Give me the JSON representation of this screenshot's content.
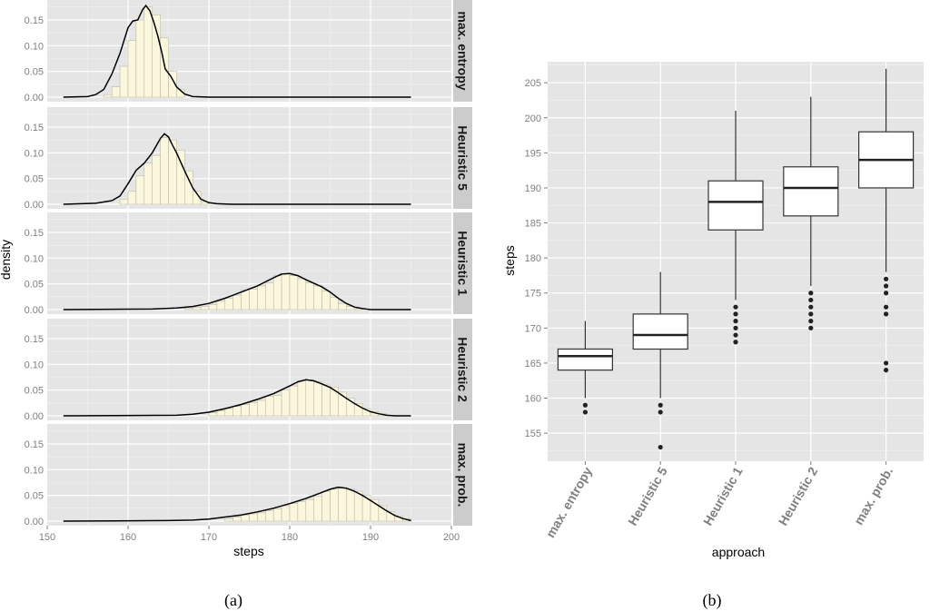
{
  "chart_data": [
    {
      "type": "histogram-density-facets",
      "xlabel": "steps",
      "ylabel": "density",
      "xlim": [
        150,
        200
      ],
      "xticks": [
        "150",
        "160",
        "170",
        "180",
        "190",
        "200"
      ],
      "ylim": [
        0,
        0.18
      ],
      "yticks": [
        "0.00",
        "0.05",
        "0.10",
        "0.15"
      ],
      "caption": "(a)",
      "colors": {
        "panel": "#e5e5e5",
        "strip": "#cccccc",
        "bar_fill": "#fbf7dc",
        "bar_stroke": "#b5b09a",
        "curve": "#000000"
      },
      "facets": [
        {
          "label": "max. entropy",
          "bins": [
            [
              157,
              0.005
            ],
            [
              158,
              0.02
            ],
            [
              159,
              0.06
            ],
            [
              160,
              0.11
            ],
            [
              161,
              0.15
            ],
            [
              162,
              0.175
            ],
            [
              163,
              0.16
            ],
            [
              164,
              0.115
            ],
            [
              165,
              0.05
            ],
            [
              166,
              0.015
            ]
          ],
          "density": [
            [
              152,
              0
            ],
            [
              155,
              0.001
            ],
            [
              156,
              0.005
            ],
            [
              157,
              0.015
            ],
            [
              158,
              0.045
            ],
            [
              159,
              0.085
            ],
            [
              160,
              0.135
            ],
            [
              160.6,
              0.148
            ],
            [
              161.2,
              0.15
            ],
            [
              161.8,
              0.17
            ],
            [
              162.2,
              0.178
            ],
            [
              162.7,
              0.168
            ],
            [
              163.2,
              0.145
            ],
            [
              163.7,
              0.118
            ],
            [
              164.2,
              0.085
            ],
            [
              164.6,
              0.055
            ],
            [
              165.3,
              0.04
            ],
            [
              166,
              0.02
            ],
            [
              167,
              0.006
            ],
            [
              168,
              0.001
            ],
            [
              170,
              0
            ],
            [
              195,
              0
            ]
          ]
        },
        {
          "label": "Heuristic 5",
          "bins": [
            [
              159,
              0.01
            ],
            [
              160,
              0.025
            ],
            [
              161,
              0.055
            ],
            [
              162,
              0.08
            ],
            [
              163,
              0.095
            ],
            [
              164,
              0.13
            ],
            [
              165,
              0.125
            ],
            [
              166,
              0.105
            ],
            [
              167,
              0.065
            ],
            [
              168,
              0.025
            ],
            [
              169,
              0.005
            ]
          ],
          "density": [
            [
              152,
              0
            ],
            [
              156,
              0.002
            ],
            [
              158,
              0.007
            ],
            [
              159,
              0.016
            ],
            [
              160,
              0.04
            ],
            [
              161,
              0.066
            ],
            [
              162,
              0.08
            ],
            [
              163,
              0.1
            ],
            [
              164,
              0.128
            ],
            [
              164.5,
              0.137
            ],
            [
              165,
              0.131
            ],
            [
              165.5,
              0.115
            ],
            [
              166,
              0.1
            ],
            [
              167,
              0.065
            ],
            [
              168,
              0.032
            ],
            [
              169,
              0.01
            ],
            [
              170,
              0.003
            ],
            [
              171,
              0.001
            ],
            [
              173,
              0
            ],
            [
              195,
              0
            ]
          ]
        },
        {
          "label": "Heuristic 1",
          "bins": [
            [
              167,
              0.002
            ],
            [
              168,
              0.004
            ],
            [
              169,
              0.006
            ],
            [
              170,
              0.01
            ],
            [
              171,
              0.016
            ],
            [
              172,
              0.022
            ],
            [
              173,
              0.028
            ],
            [
              174,
              0.038
            ],
            [
              175,
              0.04
            ],
            [
              176,
              0.046
            ],
            [
              177,
              0.052
            ],
            [
              178,
              0.066
            ],
            [
              179,
              0.07
            ],
            [
              180,
              0.066
            ],
            [
              181,
              0.06
            ],
            [
              182,
              0.052
            ],
            [
              183,
              0.046
            ],
            [
              184,
              0.036
            ],
            [
              185,
              0.024
            ],
            [
              186,
              0.012
            ],
            [
              187,
              0.006
            ],
            [
              188,
              0.002
            ]
          ],
          "density": [
            [
              152,
              0
            ],
            [
              163,
              0.001
            ],
            [
              166,
              0.003
            ],
            [
              168,
              0.006
            ],
            [
              170,
              0.012
            ],
            [
              172,
              0.022
            ],
            [
              174,
              0.034
            ],
            [
              176,
              0.046
            ],
            [
              178,
              0.062
            ],
            [
              179,
              0.069
            ],
            [
              180,
              0.07
            ],
            [
              181,
              0.066
            ],
            [
              182,
              0.058
            ],
            [
              184,
              0.044
            ],
            [
              185,
              0.034
            ],
            [
              186,
              0.022
            ],
            [
              187,
              0.012
            ],
            [
              188,
              0.005
            ],
            [
              189,
              0.002
            ],
            [
              190,
              0
            ],
            [
              195,
              0
            ]
          ]
        },
        {
          "label": "Heuristic 2",
          "bins": [
            [
              170,
              0.006
            ],
            [
              171,
              0.01
            ],
            [
              172,
              0.014
            ],
            [
              173,
              0.018
            ],
            [
              174,
              0.022
            ],
            [
              175,
              0.026
            ],
            [
              176,
              0.03
            ],
            [
              177,
              0.038
            ],
            [
              178,
              0.04
            ],
            [
              179,
              0.05
            ],
            [
              180,
              0.058
            ],
            [
              181,
              0.068
            ],
            [
              182,
              0.07
            ],
            [
              183,
              0.066
            ],
            [
              184,
              0.06
            ],
            [
              185,
              0.056
            ],
            [
              186,
              0.046
            ],
            [
              187,
              0.034
            ],
            [
              188,
              0.024
            ],
            [
              189,
              0.014
            ],
            [
              190,
              0.008
            ],
            [
              191,
              0.004
            ]
          ],
          "density": [
            [
              152,
              0
            ],
            [
              166,
              0.001
            ],
            [
              168,
              0.003
            ],
            [
              170,
              0.007
            ],
            [
              172,
              0.014
            ],
            [
              174,
              0.022
            ],
            [
              176,
              0.032
            ],
            [
              178,
              0.043
            ],
            [
              180,
              0.058
            ],
            [
              181,
              0.066
            ],
            [
              182,
              0.07
            ],
            [
              183,
              0.068
            ],
            [
              184,
              0.062
            ],
            [
              185,
              0.055
            ],
            [
              186,
              0.045
            ],
            [
              187,
              0.034
            ],
            [
              188,
              0.024
            ],
            [
              189,
              0.015
            ],
            [
              190,
              0.008
            ],
            [
              191,
              0.004
            ],
            [
              192,
              0.001
            ],
            [
              193,
              0
            ],
            [
              195,
              0
            ]
          ]
        },
        {
          "label": "max. prob.",
          "bins": [
            [
              172,
              0.004
            ],
            [
              173,
              0.008
            ],
            [
              174,
              0.012
            ],
            [
              175,
              0.014
            ],
            [
              176,
              0.016
            ],
            [
              177,
              0.02
            ],
            [
              178,
              0.024
            ],
            [
              179,
              0.03
            ],
            [
              180,
              0.034
            ],
            [
              181,
              0.038
            ],
            [
              182,
              0.042
            ],
            [
              183,
              0.048
            ],
            [
              184,
              0.058
            ],
            [
              185,
              0.062
            ],
            [
              186,
              0.064
            ],
            [
              187,
              0.062
            ],
            [
              188,
              0.058
            ],
            [
              189,
              0.05
            ],
            [
              190,
              0.042
            ],
            [
              191,
              0.03
            ],
            [
              192,
              0.018
            ],
            [
              193,
              0.01
            ],
            [
              194,
              0.004
            ]
          ],
          "density": [
            [
              152,
              0
            ],
            [
              165,
              0.001
            ],
            [
              168,
              0.002
            ],
            [
              170,
              0.004
            ],
            [
              172,
              0.008
            ],
            [
              174,
              0.012
            ],
            [
              176,
              0.018
            ],
            [
              178,
              0.025
            ],
            [
              180,
              0.034
            ],
            [
              182,
              0.044
            ],
            [
              184,
              0.056
            ],
            [
              185,
              0.062
            ],
            [
              186,
              0.066
            ],
            [
              187,
              0.064
            ],
            [
              188,
              0.058
            ],
            [
              189,
              0.05
            ],
            [
              190,
              0.04
            ],
            [
              191,
              0.03
            ],
            [
              192,
              0.02
            ],
            [
              193,
              0.011
            ],
            [
              194,
              0.005
            ],
            [
              195,
              0.001
            ]
          ]
        }
      ]
    },
    {
      "type": "boxplot",
      "xlabel": "approach",
      "ylabel": "steps",
      "ylim": [
        151,
        208
      ],
      "yticks": [
        "155",
        "160",
        "165",
        "170",
        "175",
        "180",
        "185",
        "190",
        "195",
        "200",
        "205"
      ],
      "caption": "(b)",
      "colors": {
        "panel": "#e5e5e5",
        "box_fill": "#ffffff",
        "line": "#333333"
      },
      "categories": [
        "max. entropy",
        "Heuristic 5",
        "Heuristic 1",
        "Heuristic 2",
        "max. prob."
      ],
      "boxes": [
        {
          "min": 160,
          "q1": 164,
          "median": 166,
          "q3": 167,
          "max": 171,
          "outliers": [
            158,
            159
          ]
        },
        {
          "min": 160,
          "q1": 167,
          "median": 169,
          "q3": 172,
          "max": 178,
          "outliers": [
            153,
            158,
            159
          ]
        },
        {
          "min": 174,
          "q1": 184,
          "median": 188,
          "q3": 191,
          "max": 201,
          "outliers": [
            168,
            169,
            170,
            171,
            172,
            173
          ]
        },
        {
          "min": 176,
          "q1": 186,
          "median": 190,
          "q3": 193,
          "max": 203,
          "outliers": [
            170,
            171,
            172,
            173,
            174,
            175
          ]
        },
        {
          "min": 178,
          "q1": 190,
          "median": 194,
          "q3": 198,
          "max": 207,
          "outliers": [
            164,
            165,
            172,
            173,
            175,
            176,
            177
          ]
        }
      ]
    }
  ]
}
